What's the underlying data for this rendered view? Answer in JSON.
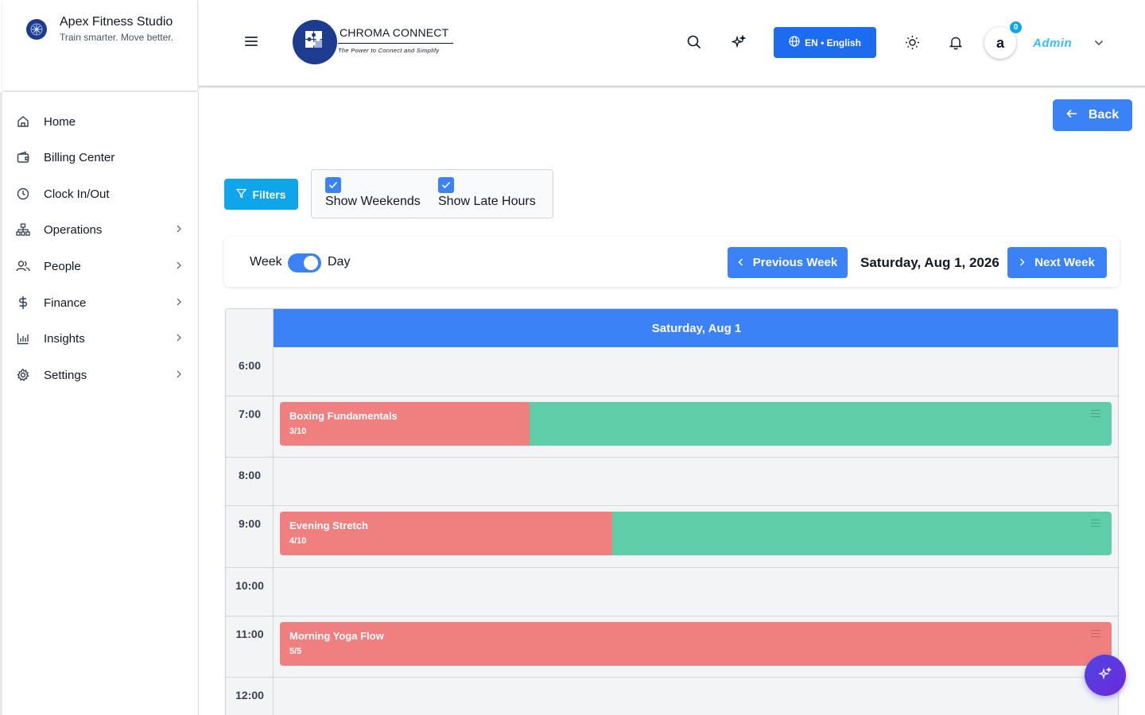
{
  "brand": {
    "name": "Apex Fitness Studio",
    "tagline": "Train smarter. Move better."
  },
  "sidebar": {
    "items": [
      {
        "label": "Home",
        "icon": "home-icon",
        "has_children": false
      },
      {
        "label": "Billing Center",
        "icon": "wallet-icon",
        "has_children": false
      },
      {
        "label": "Clock In/Out",
        "icon": "clock-icon",
        "has_children": false
      },
      {
        "label": "Operations",
        "icon": "org-chart-icon",
        "has_children": true
      },
      {
        "label": "People",
        "icon": "users-icon",
        "has_children": true
      },
      {
        "label": "Finance",
        "icon": "dollar-icon",
        "has_children": true
      },
      {
        "label": "Insights",
        "icon": "bar-chart-icon",
        "has_children": true
      },
      {
        "label": "Settings",
        "icon": "gear-icon",
        "has_children": true
      }
    ]
  },
  "header": {
    "logo_title": "CHROMA CONNECT",
    "logo_tagline": "The Power to Connect and Simplify",
    "language_label": "EN • English",
    "avatar_letter": "a",
    "notification_count": "0",
    "user_name": "Admin"
  },
  "actions": {
    "back_label": "Back",
    "filters_label": "Filters"
  },
  "filters": {
    "show_weekends": {
      "label": "Show Weekends",
      "checked": true
    },
    "show_late_hours": {
      "label": "Show Late Hours",
      "checked": true
    }
  },
  "toolbar": {
    "week_label": "Week",
    "day_label": "Day",
    "day_view_active": true,
    "prev_label": "Previous Week",
    "current_date": "Saturday, Aug 1, 2026",
    "next_label": "Next Week"
  },
  "calendar": {
    "day_header": "Saturday, Aug 1",
    "time_slots": [
      "6:00",
      "7:00",
      "8:00",
      "9:00",
      "10:00",
      "11:00",
      "12:00"
    ],
    "events": [
      {
        "slot": "7:00",
        "name": "Boxing Fundamentals",
        "capacity_text": "3/10",
        "booked": 3,
        "capacity": 10
      },
      {
        "slot": "9:00",
        "name": "Evening Stretch",
        "capacity_text": "4/10",
        "booked": 4,
        "capacity": 10
      },
      {
        "slot": "11:00",
        "name": "Morning Yoga Flow",
        "capacity_text": "5/5",
        "booked": 5,
        "capacity": 5
      }
    ]
  },
  "colors": {
    "primary": "#3b82f6",
    "accent": "#0ea5e9",
    "booked": "#f07f7f",
    "available": "#5ecda8",
    "fab": "#4f46e5"
  }
}
